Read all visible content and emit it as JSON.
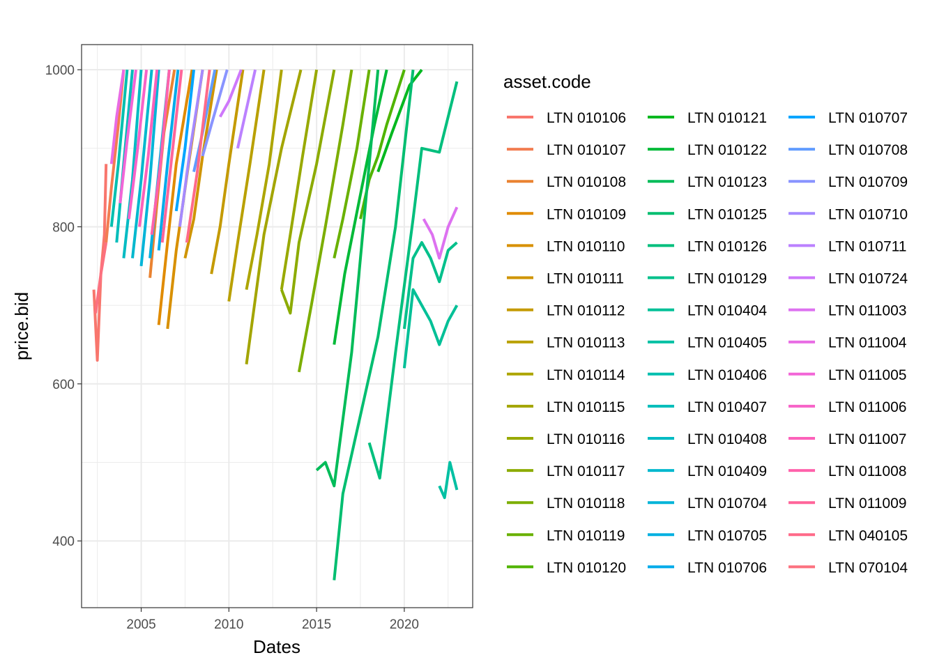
{
  "chart_data": {
    "type": "line",
    "title": "",
    "xlabel": "Dates",
    "ylabel": "price.bid",
    "xlim": [
      2001.6,
      2023.9
    ],
    "ylim": [
      315,
      1032
    ],
    "x_ticks": [
      2005,
      2010,
      2015,
      2020
    ],
    "x_tick_labels": [
      "2005",
      "2010",
      "2015",
      "2020"
    ],
    "y_ticks": [
      400,
      600,
      800,
      1000
    ],
    "y_tick_labels": [
      "400",
      "600",
      "800",
      "1000"
    ],
    "grid": true,
    "legend": {
      "title": "asset.code",
      "placement": "right",
      "columns": 3
    },
    "series": [
      {
        "name": "LTN 010106",
        "color": "#F8766D",
        "x": [
          2002.3,
          2002.5,
          2002.7,
          2002.9,
          2003.0
        ],
        "y": [
          720,
          630,
          740,
          790,
          880
        ]
      },
      {
        "name": "LTN 010107",
        "color": "#F27D51",
        "x": [
          2003.0,
          2003.3,
          2003.7,
          2004.0
        ],
        "y": [
          780,
          850,
          930,
          1000
        ]
      },
      {
        "name": "LTN 010108",
        "color": "#EA8331",
        "x": [
          2005.5,
          2005.9,
          2006.3,
          2006.9
        ],
        "y": [
          735,
          830,
          920,
          1000
        ]
      },
      {
        "name": "LTN 010109",
        "color": "#E08B00",
        "x": [
          2006.0,
          2006.5,
          2007.0,
          2007.9
        ],
        "y": [
          675,
          780,
          880,
          1000
        ]
      },
      {
        "name": "LTN 010110",
        "color": "#D89000",
        "x": [
          2006.5,
          2007.0,
          2007.7,
          2008.5
        ],
        "y": [
          670,
          770,
          880,
          1000
        ]
      },
      {
        "name": "LTN 010111",
        "color": "#CF9400",
        "x": [
          2007.5,
          2008.0,
          2008.5,
          2009.3
        ],
        "y": [
          760,
          810,
          890,
          1000
        ]
      },
      {
        "name": "LTN 010112",
        "color": "#C49A00",
        "x": [
          2009.0,
          2009.5,
          2010.0,
          2010.8
        ],
        "y": [
          740,
          800,
          880,
          1000
        ]
      },
      {
        "name": "LTN 010113",
        "color": "#B9A000",
        "x": [
          2010.0,
          2010.5,
          2011.2,
          2012.0
        ],
        "y": [
          705,
          780,
          880,
          1000
        ]
      },
      {
        "name": "LTN 010114",
        "color": "#ADA500",
        "x": [
          2011.0,
          2011.6,
          2012.3,
          2013.0
        ],
        "y": [
          720,
          790,
          880,
          1000
        ]
      },
      {
        "name": "LTN 010115",
        "color": "#A3A500",
        "x": [
          2011.0,
          2012.0,
          2013.0,
          2014.1
        ],
        "y": [
          625,
          790,
          900,
          1000
        ]
      },
      {
        "name": "LTN 010116",
        "color": "#98A900",
        "x": [
          2013.0,
          2013.5,
          2014.2,
          2015.0
        ],
        "y": [
          720,
          790,
          890,
          1000
        ]
      },
      {
        "name": "LTN 010117",
        "color": "#8CAB00",
        "x": [
          2013.0,
          2013.5,
          2014.0,
          2015.0,
          2016.0
        ],
        "y": [
          720,
          690,
          780,
          880,
          1000
        ]
      },
      {
        "name": "LTN 010118",
        "color": "#7CAE00",
        "x": [
          2014.0,
          2014.7,
          2015.5,
          2016.5,
          2017.0
        ],
        "y": [
          615,
          700,
          800,
          930,
          1000
        ]
      },
      {
        "name": "LTN 010119",
        "color": "#69B100",
        "x": [
          2016.0,
          2016.5,
          2017.3,
          2018.0
        ],
        "y": [
          760,
          810,
          900,
          1000
        ]
      },
      {
        "name": "LTN 010120",
        "color": "#50B400",
        "x": [
          2017.5,
          2018.0,
          2018.5,
          2019.0,
          2020.0
        ],
        "y": [
          810,
          860,
          890,
          930,
          1000
        ]
      },
      {
        "name": "LTN 010121",
        "color": "#00B81F",
        "x": [
          2018.5,
          2019.3,
          2020.3,
          2021.0
        ],
        "y": [
          870,
          920,
          980,
          1000
        ]
      },
      {
        "name": "LTN 010122",
        "color": "#00BA38",
        "x": [
          2016.0,
          2016.6,
          2017.4,
          2018.3,
          2019.0
        ],
        "y": [
          650,
          740,
          830,
          930,
          1000
        ]
      },
      {
        "name": "LTN 010123",
        "color": "#00BC59",
        "x": [
          2015.0,
          2015.5,
          2016.0,
          2017.0,
          2018.5
        ],
        "y": [
          490,
          500,
          470,
          640,
          1000
        ]
      },
      {
        "name": "LTN 010125",
        "color": "#00BE70",
        "x": [
          2016.0,
          2016.5,
          2017.5,
          2018.5,
          2019.5,
          2020.5
        ],
        "y": [
          350,
          460,
          560,
          660,
          800,
          1000
        ]
      },
      {
        "name": "LTN 010126",
        "color": "#00BF7D",
        "x": [
          2018.0,
          2018.6,
          2019.5,
          2020.5,
          2021.0,
          2022.0,
          2023.0
        ],
        "y": [
          525,
          480,
          640,
          810,
          900,
          895,
          985
        ]
      },
      {
        "name": "LTN 010129",
        "color": "#00C08B",
        "x": [
          2020.0,
          2020.5,
          2021.0,
          2021.5,
          2022.0,
          2022.5,
          2023.0
        ],
        "y": [
          670,
          760,
          780,
          760,
          730,
          770,
          780
        ]
      },
      {
        "name": "LTN 010404",
        "color": "#00C097",
        "x": [
          2020.0,
          2020.5,
          2021.0,
          2021.5,
          2022.0,
          2022.5,
          2023.0
        ],
        "y": [
          620,
          720,
          700,
          680,
          650,
          680,
          700
        ]
      },
      {
        "name": "LTN 010405",
        "color": "#00C0A3",
        "x": [
          2022.0,
          2022.3,
          2022.6,
          2023.0
        ],
        "y": [
          470,
          455,
          500,
          465
        ]
      },
      {
        "name": "LTN 010406",
        "color": "#00BFAF",
        "x": [
          2003.3,
          2003.7,
          2004.2
        ],
        "y": [
          800,
          880,
          1000
        ]
      },
      {
        "name": "LTN 010407",
        "color": "#00BDBA",
        "x": [
          2003.6,
          2004.0,
          2004.5
        ],
        "y": [
          780,
          880,
          1000
        ]
      },
      {
        "name": "LTN 010408",
        "color": "#00BBC3",
        "x": [
          2004.0,
          2004.5,
          2005.0
        ],
        "y": [
          760,
          860,
          1000
        ]
      },
      {
        "name": "LTN 010409",
        "color": "#00B8CE",
        "x": [
          2004.5,
          2005.0,
          2005.6
        ],
        "y": [
          760,
          860,
          1000
        ]
      },
      {
        "name": "LTN 010704",
        "color": "#00B4D8",
        "x": [
          2005.0,
          2005.5,
          2006.0
        ],
        "y": [
          750,
          860,
          1000
        ]
      },
      {
        "name": "LTN 010705",
        "color": "#00B0E1",
        "x": [
          2005.5,
          2006.0,
          2006.6
        ],
        "y": [
          760,
          870,
          1000
        ]
      },
      {
        "name": "LTN 010706",
        "color": "#00ABEA",
        "x": [
          2006.0,
          2006.5,
          2007.1
        ],
        "y": [
          770,
          880,
          1000
        ]
      },
      {
        "name": "LTN 010707",
        "color": "#00A5FF",
        "x": [
          2007.0,
          2007.5,
          2008.0
        ],
        "y": [
          820,
          900,
          1000
        ]
      },
      {
        "name": "LTN 010708",
        "color": "#619CFF",
        "x": [
          2008.0,
          2008.5,
          2009.2
        ],
        "y": [
          870,
          920,
          1000
        ]
      },
      {
        "name": "LTN 010709",
        "color": "#8994FF",
        "x": [
          2008.5,
          2009.0,
          2009.9
        ],
        "y": [
          890,
          930,
          1000
        ]
      },
      {
        "name": "LTN 010710",
        "color": "#A58AFF",
        "x": [
          2007.2,
          2007.8,
          2008.5
        ],
        "y": [
          800,
          900,
          1000
        ]
      },
      {
        "name": "LTN 010711",
        "color": "#BB81FF",
        "x": [
          2010.5,
          2011.0,
          2011.5
        ],
        "y": [
          900,
          950,
          1000
        ]
      },
      {
        "name": "LTN 010724",
        "color": "#CE78FB",
        "x": [
          2009.5,
          2010.0,
          2010.7
        ],
        "y": [
          940,
          960,
          1000
        ]
      },
      {
        "name": "LTN 011003",
        "color": "#DD71F0",
        "x": [
          2021.1,
          2021.6,
          2022.0,
          2022.5,
          2023.0
        ],
        "y": [
          810,
          790,
          760,
          800,
          825
        ]
      },
      {
        "name": "LTN 011004",
        "color": "#E86BE4",
        "x": [
          2003.3,
          2003.6,
          2004.0
        ],
        "y": [
          880,
          940,
          1000
        ]
      },
      {
        "name": "LTN 011005",
        "color": "#F266D7",
        "x": [
          2003.8,
          2004.2,
          2004.7
        ],
        "y": [
          830,
          910,
          1000
        ]
      },
      {
        "name": "LTN 011006",
        "color": "#F763C8",
        "x": [
          2004.3,
          2004.8,
          2005.3
        ],
        "y": [
          810,
          900,
          1000
        ]
      },
      {
        "name": "LTN 011007",
        "color": "#FC61BA",
        "x": [
          2004.9,
          2005.4,
          2005.9
        ],
        "y": [
          800,
          890,
          1000
        ]
      },
      {
        "name": "LTN 011008",
        "color": "#FF62AB",
        "x": [
          2005.6,
          2006.1,
          2006.6
        ],
        "y": [
          790,
          880,
          1000
        ]
      },
      {
        "name": "LTN 011009",
        "color": "#FF659A",
        "x": [
          2006.2,
          2006.7,
          2007.3
        ],
        "y": [
          780,
          880,
          1000
        ]
      },
      {
        "name": "LTN 040105",
        "color": "#FF6A89",
        "x": [
          2007.6,
          2008.2,
          2008.9
        ],
        "y": [
          780,
          870,
          1000
        ]
      },
      {
        "name": "LTN 070104",
        "color": "#FC717F",
        "x": [
          2002.4,
          2002.7,
          2003.0
        ],
        "y": [
          690,
          740,
          780
        ]
      }
    ]
  }
}
